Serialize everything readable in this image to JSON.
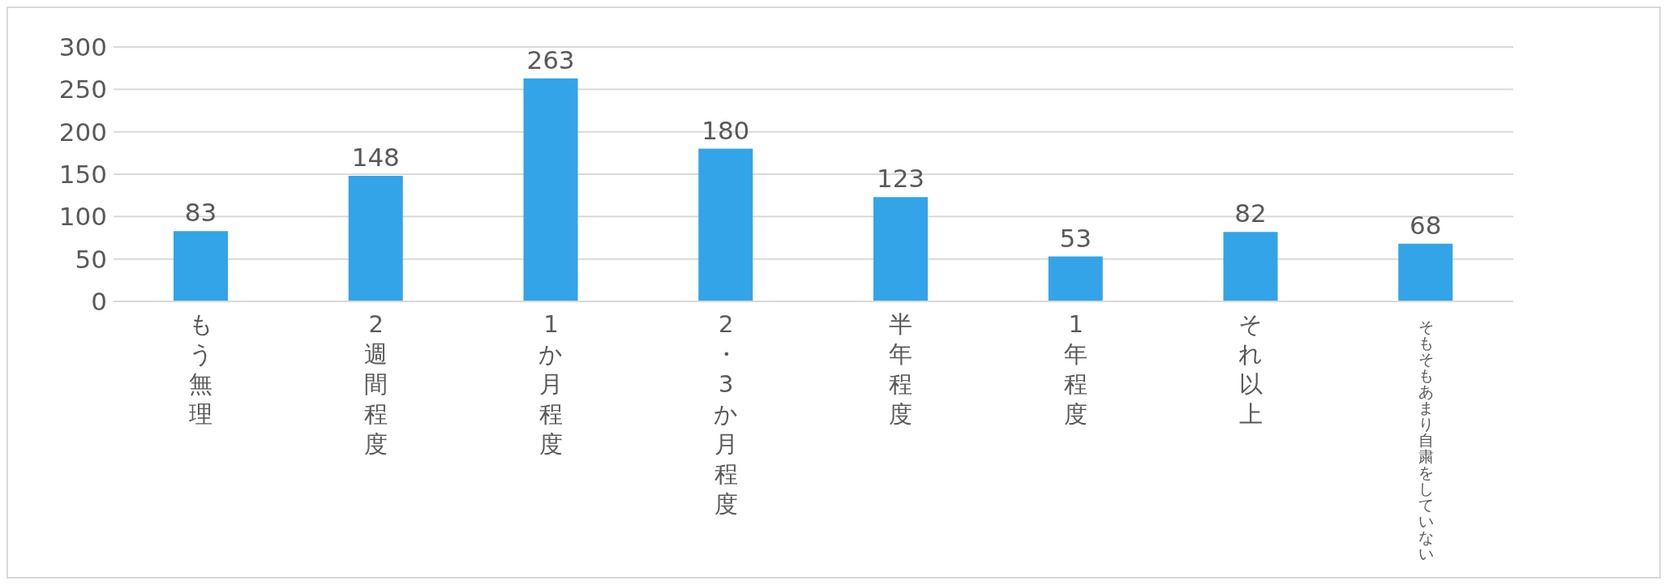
{
  "chart_data": {
    "type": "bar",
    "categories": [
      "もう無理",
      "2週間程度",
      "1か月程度",
      "2・3か月程度",
      "半年程度",
      "1年程度",
      "それ以上",
      "そもそもあまり自粛をしていない"
    ],
    "values": [
      83,
      148,
      263,
      180,
      123,
      53,
      82,
      68
    ],
    "color": "#33a4e8",
    "ylim": [
      0,
      300
    ],
    "yticks": [
      0,
      50,
      100,
      150,
      200,
      250,
      300
    ],
    "grid": "y",
    "data_labels": true
  }
}
